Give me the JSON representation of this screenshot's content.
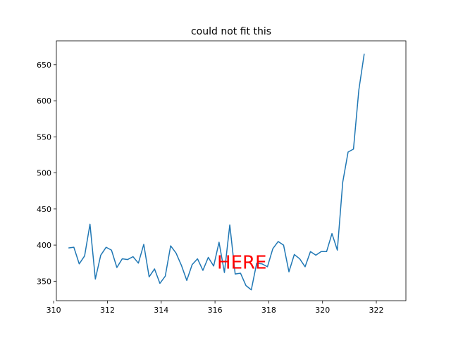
{
  "chart_data": {
    "type": "line",
    "title": "could not fit this",
    "xlabel": "",
    "ylabel": "",
    "xlim": [
      310.1,
      323.1
    ],
    "ylim": [
      323,
      683
    ],
    "x_ticks": [
      310,
      312,
      314,
      316,
      318,
      320,
      322
    ],
    "y_ticks": [
      350,
      400,
      450,
      500,
      550,
      600,
      650
    ],
    "grid": false,
    "series": [
      {
        "color": "#1f77b4",
        "x": [
          310.55,
          310.75,
          310.95,
          311.15,
          311.35,
          311.55,
          311.75,
          311.95,
          312.15,
          312.35,
          312.55,
          312.75,
          312.95,
          313.15,
          313.35,
          313.55,
          313.75,
          313.95,
          314.15,
          314.35,
          314.55,
          314.75,
          314.95,
          315.15,
          315.35,
          315.55,
          315.75,
          315.95,
          316.15,
          316.35,
          316.55,
          316.75,
          316.95,
          317.15,
          317.35,
          317.55,
          317.75,
          317.95,
          318.15,
          318.35,
          318.55,
          318.75,
          318.95,
          319.15,
          319.35,
          319.55,
          319.75,
          319.95,
          320.15,
          320.35,
          320.55,
          320.75,
          320.95,
          321.15,
          321.35,
          321.55,
          321.75,
          321.95,
          322.15,
          322.35
        ],
        "y": [
          396,
          397,
          374,
          385,
          429,
          353,
          386,
          397,
          393,
          369,
          381,
          380,
          384,
          375,
          401,
          356,
          367,
          347,
          357,
          399,
          389,
          372,
          351,
          373,
          381,
          365,
          383,
          371,
          404,
          362,
          428,
          360,
          361,
          344,
          338,
          375,
          374,
          370,
          395,
          405,
          400,
          363,
          387,
          381,
          370,
          391,
          386,
          391,
          391,
          416,
          393,
          487,
          529,
          533,
          615,
          665,
          null,
          null,
          null,
          null
        ]
      }
    ],
    "annotations": [
      {
        "text": "HERE",
        "x": 317.0,
        "y": 376,
        "color": "#ff0000"
      }
    ]
  }
}
